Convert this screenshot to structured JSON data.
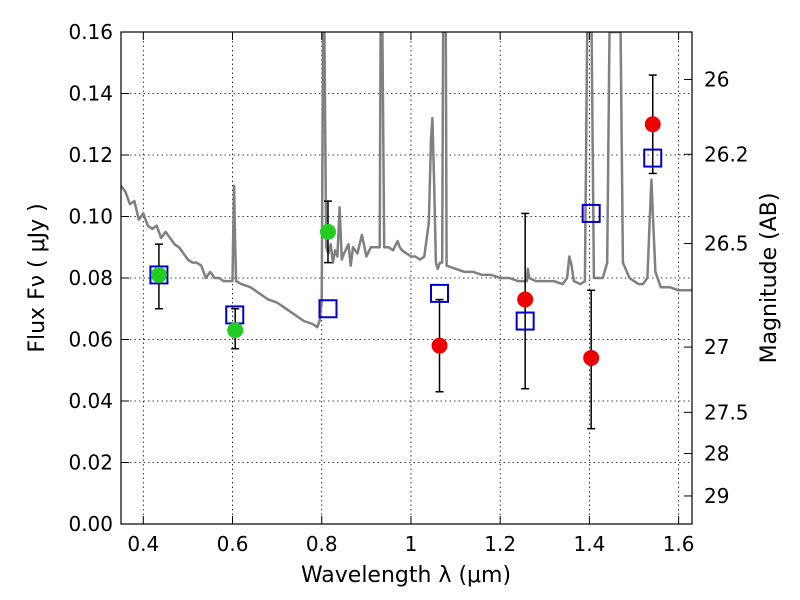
{
  "chart_data": {
    "type": "scatter",
    "xlabel": "Wavelength  λ (μm)",
    "ylabel": "Flux  Fν  ( μJy )",
    "y2label": "Magnitude (AB)",
    "xlim": [
      0.35,
      1.63
    ],
    "ylim": [
      0.0,
      0.16
    ],
    "grid": true,
    "xticks": [
      {
        "v": 0.4,
        "label": "0.4"
      },
      {
        "v": 0.6,
        "label": "0.6"
      },
      {
        "v": 0.8,
        "label": "0.8"
      },
      {
        "v": 1.0,
        "label": "1"
      },
      {
        "v": 1.2,
        "label": "1.2"
      },
      {
        "v": 1.4,
        "label": "1.4"
      },
      {
        "v": 1.6,
        "label": "1.6"
      }
    ],
    "yticks": [
      {
        "v": 0.0,
        "label": "0.00"
      },
      {
        "v": 0.02,
        "label": "0.02"
      },
      {
        "v": 0.04,
        "label": "0.04"
      },
      {
        "v": 0.06,
        "label": "0.06"
      },
      {
        "v": 0.08,
        "label": "0.08"
      },
      {
        "v": 0.1,
        "label": "0.10"
      },
      {
        "v": 0.12,
        "label": "0.12"
      },
      {
        "v": 0.14,
        "label": "0.14"
      },
      {
        "v": 0.16,
        "label": "0.16"
      }
    ],
    "y2ticks": [
      {
        "mag": 26,
        "label": "26"
      },
      {
        "mag": 26.2,
        "label": "26.2"
      },
      {
        "mag": 26.5,
        "label": "26.5"
      },
      {
        "mag": 27,
        "label": "27"
      },
      {
        "mag": 27.5,
        "label": "27.5"
      },
      {
        "mag": 28,
        "label": "28"
      },
      {
        "mag": 29,
        "label": "29"
      }
    ],
    "colors": {
      "template": "#808080",
      "model": "#0000cc",
      "optical": "#22cc22",
      "nir": "#ee0000",
      "errorbar": "#000000"
    },
    "template_spectrum": [
      [
        0.35,
        0.11
      ],
      [
        0.36,
        0.108
      ],
      [
        0.37,
        0.104
      ],
      [
        0.38,
        0.105
      ],
      [
        0.39,
        0.099
      ],
      [
        0.4,
        0.101
      ],
      [
        0.41,
        0.097
      ],
      [
        0.42,
        0.096
      ],
      [
        0.43,
        0.097
      ],
      [
        0.44,
        0.093
      ],
      [
        0.45,
        0.095
      ],
      [
        0.46,
        0.093
      ],
      [
        0.47,
        0.091
      ],
      [
        0.48,
        0.09
      ],
      [
        0.49,
        0.088
      ],
      [
        0.5,
        0.086
      ],
      [
        0.51,
        0.085
      ],
      [
        0.52,
        0.085
      ],
      [
        0.53,
        0.084
      ],
      [
        0.54,
        0.08
      ],
      [
        0.55,
        0.082
      ],
      [
        0.56,
        0.08
      ],
      [
        0.57,
        0.08
      ],
      [
        0.58,
        0.079
      ],
      [
        0.59,
        0.079
      ],
      [
        0.6,
        0.079
      ],
      [
        0.601,
        0.09
      ],
      [
        0.6035,
        0.11
      ],
      [
        0.606,
        0.09
      ],
      [
        0.608,
        0.079
      ],
      [
        0.62,
        0.078
      ],
      [
        0.64,
        0.077
      ],
      [
        0.66,
        0.075
      ],
      [
        0.68,
        0.073
      ],
      [
        0.7,
        0.072
      ],
      [
        0.72,
        0.07
      ],
      [
        0.74,
        0.068
      ],
      [
        0.76,
        0.066
      ],
      [
        0.78,
        0.065
      ],
      [
        0.79,
        0.064
      ],
      [
        0.795,
        0.066
      ],
      [
        0.8,
        0.072
      ],
      [
        0.803,
        0.16
      ],
      [
        0.806,
        0.16
      ],
      [
        0.81,
        0.09
      ],
      [
        0.815,
        0.088
      ],
      [
        0.82,
        0.091
      ],
      [
        0.825,
        0.085
      ],
      [
        0.83,
        0.089
      ],
      [
        0.835,
        0.087
      ],
      [
        0.84,
        0.103
      ],
      [
        0.845,
        0.086
      ],
      [
        0.85,
        0.088
      ],
      [
        0.86,
        0.091
      ],
      [
        0.865,
        0.084
      ],
      [
        0.87,
        0.09
      ],
      [
        0.88,
        0.088
      ],
      [
        0.89,
        0.094
      ],
      [
        0.9,
        0.087
      ],
      [
        0.91,
        0.09
      ],
      [
        0.92,
        0.09
      ],
      [
        0.93,
        0.09
      ],
      [
        0.932,
        0.16
      ],
      [
        0.936,
        0.16
      ],
      [
        0.94,
        0.09
      ],
      [
        0.95,
        0.09
      ],
      [
        0.96,
        0.089
      ],
      [
        0.97,
        0.092
      ],
      [
        0.975,
        0.09
      ],
      [
        0.98,
        0.089
      ],
      [
        0.99,
        0.088
      ],
      [
        1.0,
        0.087
      ],
      [
        1.01,
        0.087
      ],
      [
        1.02,
        0.086
      ],
      [
        1.03,
        0.087
      ],
      [
        1.04,
        0.098
      ],
      [
        1.045,
        0.125
      ],
      [
        1.048,
        0.132
      ],
      [
        1.052,
        0.11
      ],
      [
        1.056,
        0.085
      ],
      [
        1.06,
        0.083
      ],
      [
        1.065,
        0.085
      ],
      [
        1.07,
        0.085
      ],
      [
        1.072,
        0.16
      ],
      [
        1.078,
        0.16
      ],
      [
        1.08,
        0.084
      ],
      [
        1.1,
        0.083
      ],
      [
        1.12,
        0.082
      ],
      [
        1.14,
        0.082
      ],
      [
        1.16,
        0.081
      ],
      [
        1.18,
        0.081
      ],
      [
        1.2,
        0.08
      ],
      [
        1.22,
        0.08
      ],
      [
        1.24,
        0.079
      ],
      [
        1.26,
        0.079
      ],
      [
        1.262,
        0.083
      ],
      [
        1.265,
        0.08
      ],
      [
        1.28,
        0.079
      ],
      [
        1.3,
        0.079
      ],
      [
        1.32,
        0.079
      ],
      [
        1.34,
        0.078
      ],
      [
        1.35,
        0.08
      ],
      [
        1.355,
        0.087
      ],
      [
        1.36,
        0.084
      ],
      [
        1.365,
        0.079
      ],
      [
        1.38,
        0.078
      ],
      [
        1.39,
        0.079
      ],
      [
        1.395,
        0.16
      ],
      [
        1.405,
        0.16
      ],
      [
        1.41,
        0.08
      ],
      [
        1.43,
        0.08
      ],
      [
        1.44,
        0.085
      ],
      [
        1.445,
        0.16
      ],
      [
        1.47,
        0.16
      ],
      [
        1.475,
        0.085
      ],
      [
        1.49,
        0.08
      ],
      [
        1.5,
        0.079
      ],
      [
        1.51,
        0.078
      ],
      [
        1.52,
        0.078
      ],
      [
        1.53,
        0.08
      ],
      [
        1.535,
        0.098
      ],
      [
        1.539,
        0.112
      ],
      [
        1.543,
        0.098
      ],
      [
        1.548,
        0.082
      ],
      [
        1.56,
        0.077
      ],
      [
        1.58,
        0.077
      ],
      [
        1.6,
        0.076
      ],
      [
        1.63,
        0.076
      ]
    ],
    "model_fluxes": [
      {
        "x": 0.435,
        "y": 0.081
      },
      {
        "x": 0.605,
        "y": 0.068
      },
      {
        "x": 0.814,
        "y": 0.07
      },
      {
        "x": 1.064,
        "y": 0.075
      },
      {
        "x": 1.256,
        "y": 0.066
      },
      {
        "x": 1.404,
        "y": 0.101
      },
      {
        "x": 1.542,
        "y": 0.119
      }
    ],
    "observed_optical": [
      {
        "x": 0.435,
        "y": 0.081,
        "err_lo": 0.011,
        "err_hi": 0.01
      },
      {
        "x": 0.606,
        "y": 0.063,
        "err_lo": 0.006,
        "err_hi": 0.007
      },
      {
        "x": 0.814,
        "y": 0.095,
        "err_lo": 0.01,
        "err_hi": 0.01
      }
    ],
    "observed_nir": [
      {
        "x": 1.064,
        "y": 0.058,
        "err_lo": 0.015,
        "err_hi": 0.015
      },
      {
        "x": 1.256,
        "y": 0.073,
        "err_lo": 0.029,
        "err_hi": 0.028
      },
      {
        "x": 1.404,
        "y": 0.054,
        "err_lo": 0.023,
        "err_hi": 0.022
      },
      {
        "x": 1.542,
        "y": 0.13,
        "err_lo": 0.016,
        "err_hi": 0.016
      }
    ]
  }
}
